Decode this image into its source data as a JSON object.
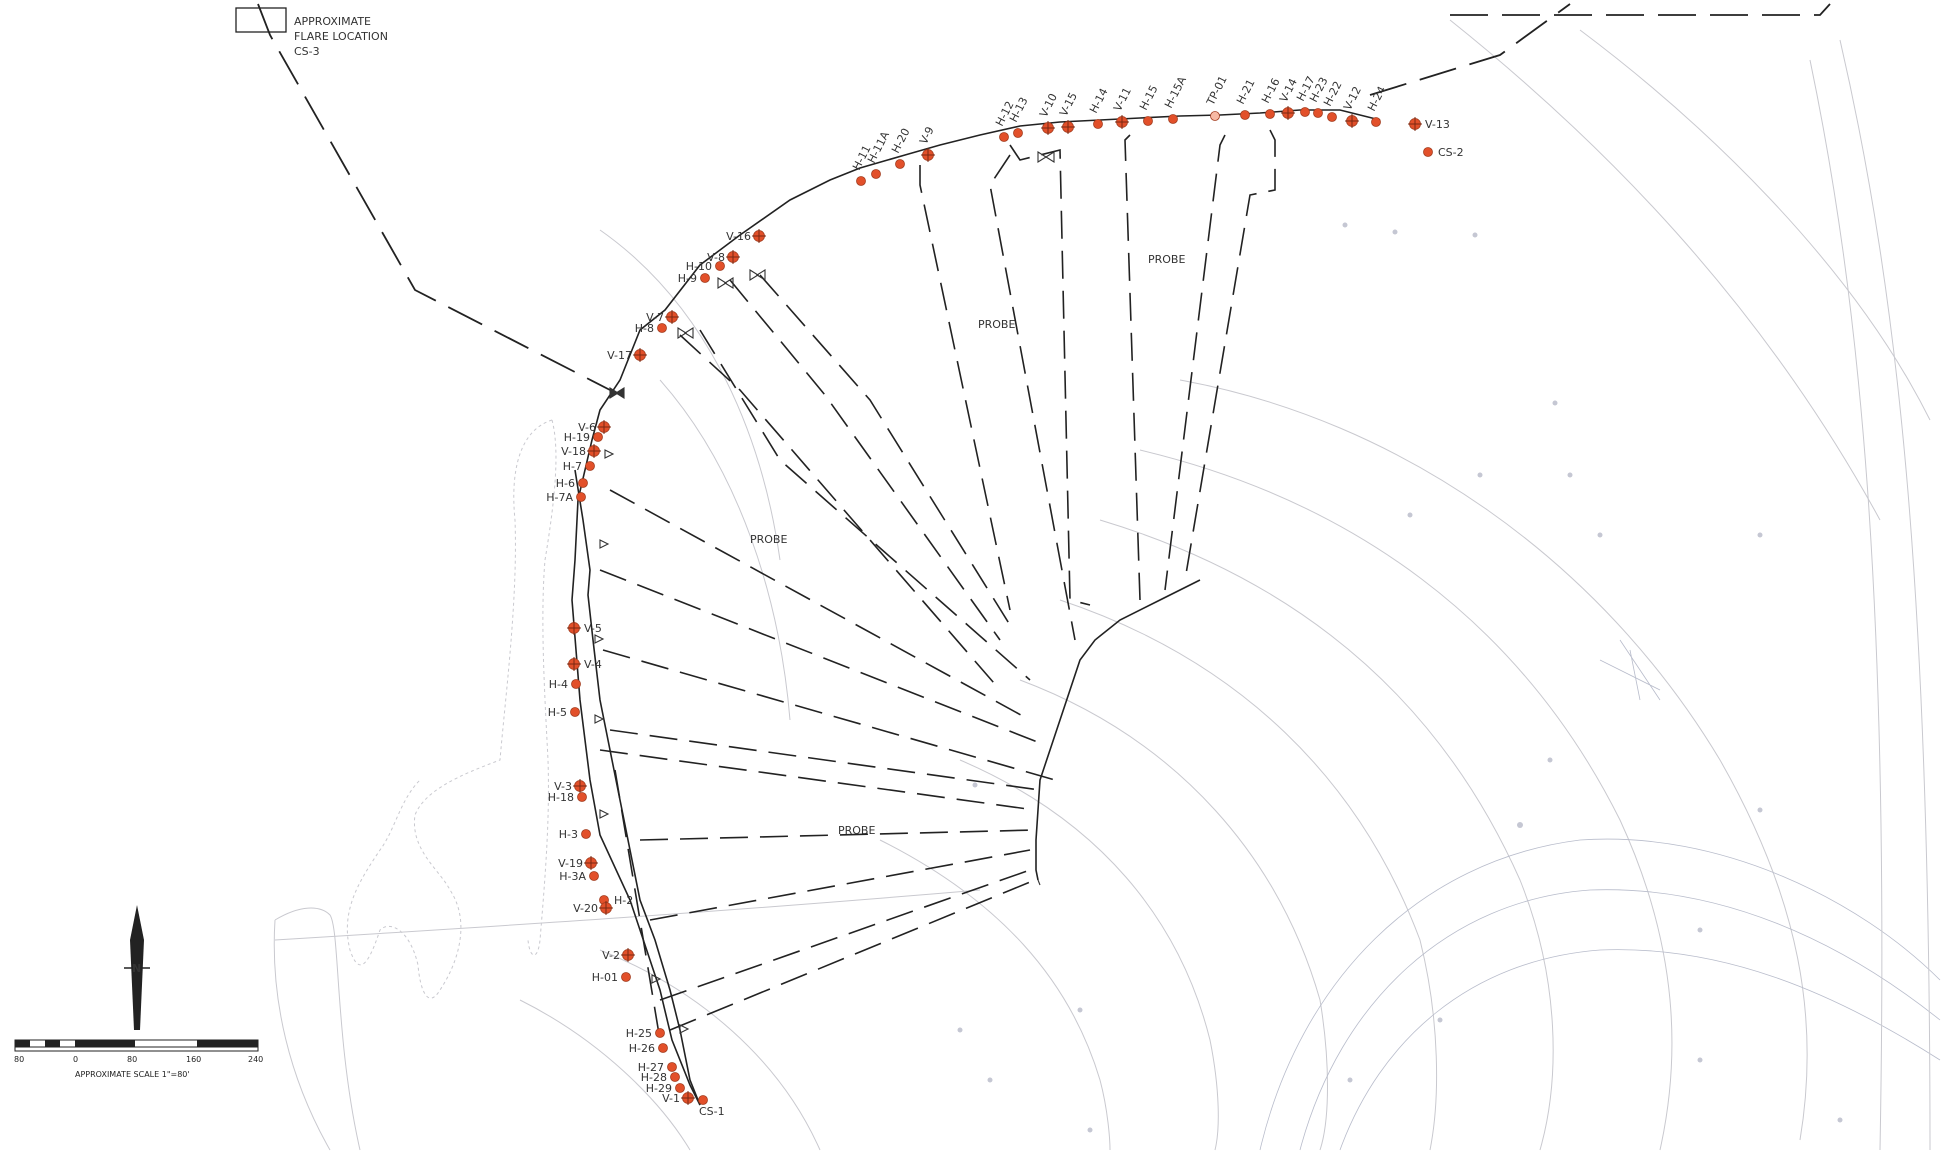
{
  "flare": {
    "line1": "APPROXIMATE",
    "line2": "FLARE LOCATION",
    "line3": "CS-3"
  },
  "probe_labels": [
    "PROBE",
    "PROBE",
    "PROBE",
    "PROBE"
  ],
  "scale": {
    "ticks": [
      "80",
      "0",
      "80",
      "160",
      "240"
    ],
    "caption": "APPROXIMATE SCALE 1\"=80'"
  },
  "north_symbol": "N",
  "points": [
    {
      "id": "H-11",
      "kind": "well"
    },
    {
      "id": "H-11A",
      "kind": "well"
    },
    {
      "id": "H-20",
      "kind": "well"
    },
    {
      "id": "V-9",
      "kind": "probe"
    },
    {
      "id": "H-12",
      "kind": "well"
    },
    {
      "id": "H-13",
      "kind": "well"
    },
    {
      "id": "V-10",
      "kind": "probe"
    },
    {
      "id": "V-15",
      "kind": "probe"
    },
    {
      "id": "H-14",
      "kind": "well"
    },
    {
      "id": "V-11",
      "kind": "probe"
    },
    {
      "id": "H-15",
      "kind": "well"
    },
    {
      "id": "H-15A",
      "kind": "well"
    },
    {
      "id": "TP-01",
      "kind": "test"
    },
    {
      "id": "H-21",
      "kind": "well"
    },
    {
      "id": "H-16",
      "kind": "well"
    },
    {
      "id": "V-14",
      "kind": "probe"
    },
    {
      "id": "H-17",
      "kind": "well"
    },
    {
      "id": "H-23",
      "kind": "well"
    },
    {
      "id": "H-22",
      "kind": "well"
    },
    {
      "id": "V-12",
      "kind": "probe"
    },
    {
      "id": "H-24",
      "kind": "well"
    },
    {
      "id": "V-13",
      "kind": "probe"
    },
    {
      "id": "CS-2",
      "kind": "well"
    },
    {
      "id": "V-16",
      "kind": "probe"
    },
    {
      "id": "V-8",
      "kind": "probe"
    },
    {
      "id": "H-10",
      "kind": "well"
    },
    {
      "id": "H-9",
      "kind": "well"
    },
    {
      "id": "V-7",
      "kind": "probe"
    },
    {
      "id": "H-8",
      "kind": "well"
    },
    {
      "id": "V-17",
      "kind": "probe"
    },
    {
      "id": "V-6",
      "kind": "probe"
    },
    {
      "id": "H-19",
      "kind": "well"
    },
    {
      "id": "V-18",
      "kind": "probe"
    },
    {
      "id": "H-7",
      "kind": "well"
    },
    {
      "id": "H-6",
      "kind": "well"
    },
    {
      "id": "H-7A",
      "kind": "well"
    },
    {
      "id": "V-5",
      "kind": "probe"
    },
    {
      "id": "V-4",
      "kind": "probe"
    },
    {
      "id": "H-4",
      "kind": "well"
    },
    {
      "id": "H-5",
      "kind": "well"
    },
    {
      "id": "V-3",
      "kind": "probe"
    },
    {
      "id": "H-18",
      "kind": "well"
    },
    {
      "id": "H-3",
      "kind": "well"
    },
    {
      "id": "V-19",
      "kind": "probe"
    },
    {
      "id": "H-3A",
      "kind": "well"
    },
    {
      "id": "H-2",
      "kind": "well"
    },
    {
      "id": "V-20",
      "kind": "probe"
    },
    {
      "id": "V-2",
      "kind": "probe"
    },
    {
      "id": "H-01",
      "kind": "well"
    },
    {
      "id": "H-25",
      "kind": "well"
    },
    {
      "id": "H-26",
      "kind": "well"
    },
    {
      "id": "H-27",
      "kind": "well"
    },
    {
      "id": "H-28",
      "kind": "well"
    },
    {
      "id": "H-29",
      "kind": "well"
    },
    {
      "id": "V-1",
      "kind": "probe"
    },
    {
      "id": "CS-1",
      "kind": "well"
    }
  ],
  "colors": {
    "marker": "#e2502a",
    "line": "#222222",
    "faint": "#c9c9cf"
  }
}
